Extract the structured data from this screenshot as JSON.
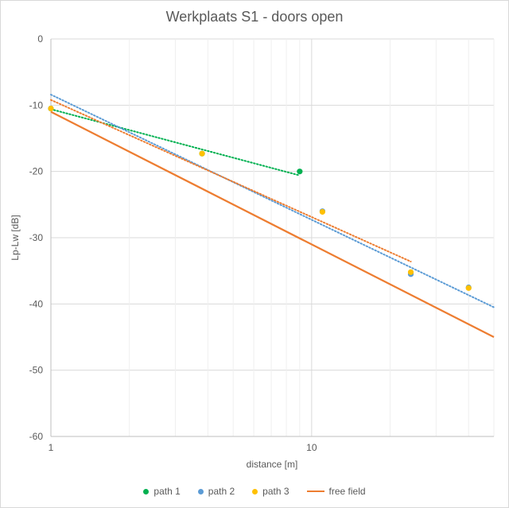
{
  "chart_data": {
    "type": "scatter",
    "title": "Werkplaats S1 - doors open",
    "xlabel": "distance [m]",
    "ylabel": "Lp-Lw [dB]",
    "x_scale": "log",
    "xlim": [
      1,
      50
    ],
    "ylim": [
      -60,
      0
    ],
    "x_tick_labels": [
      "1",
      "10"
    ],
    "y_ticks": [
      0,
      -10,
      -20,
      -30,
      -40,
      -50,
      -60
    ],
    "grid": true,
    "legend_position": "bottom",
    "series": [
      {
        "name": "path 1",
        "kind": "points",
        "color": "#00b050",
        "points": [
          [
            1,
            -10.5
          ],
          [
            3.8,
            -17.3
          ],
          [
            9,
            -20
          ]
        ],
        "trendline": {
          "color": "#00b050",
          "from": [
            1,
            -10.6
          ],
          "to": [
            9,
            -20.6
          ]
        }
      },
      {
        "name": "path 2",
        "kind": "points",
        "color": "#5b9bd5",
        "points": [
          [
            1,
            -10.5
          ],
          [
            11,
            -26
          ],
          [
            24,
            -35.5
          ],
          [
            40,
            -37.5
          ]
        ],
        "trendline": {
          "color": "#5b9bd5",
          "from": [
            1,
            -8.4
          ],
          "to": [
            50,
            -40.5
          ]
        }
      },
      {
        "name": "path 3",
        "kind": "points",
        "color": "#ffc000",
        "points": [
          [
            1,
            -10.5
          ],
          [
            3.8,
            -17.3
          ],
          [
            11,
            -26.1
          ],
          [
            24,
            -35.2
          ],
          [
            40,
            -37.6
          ]
        ],
        "trendline": {
          "color": "#ed7d31",
          "from": [
            1,
            -9.2
          ],
          "to": [
            24,
            -33.6
          ]
        }
      },
      {
        "name": "free field",
        "kind": "line",
        "color": "#ed7d31",
        "points": [
          [
            1,
            -11
          ],
          [
            50,
            -45
          ]
        ]
      }
    ]
  }
}
